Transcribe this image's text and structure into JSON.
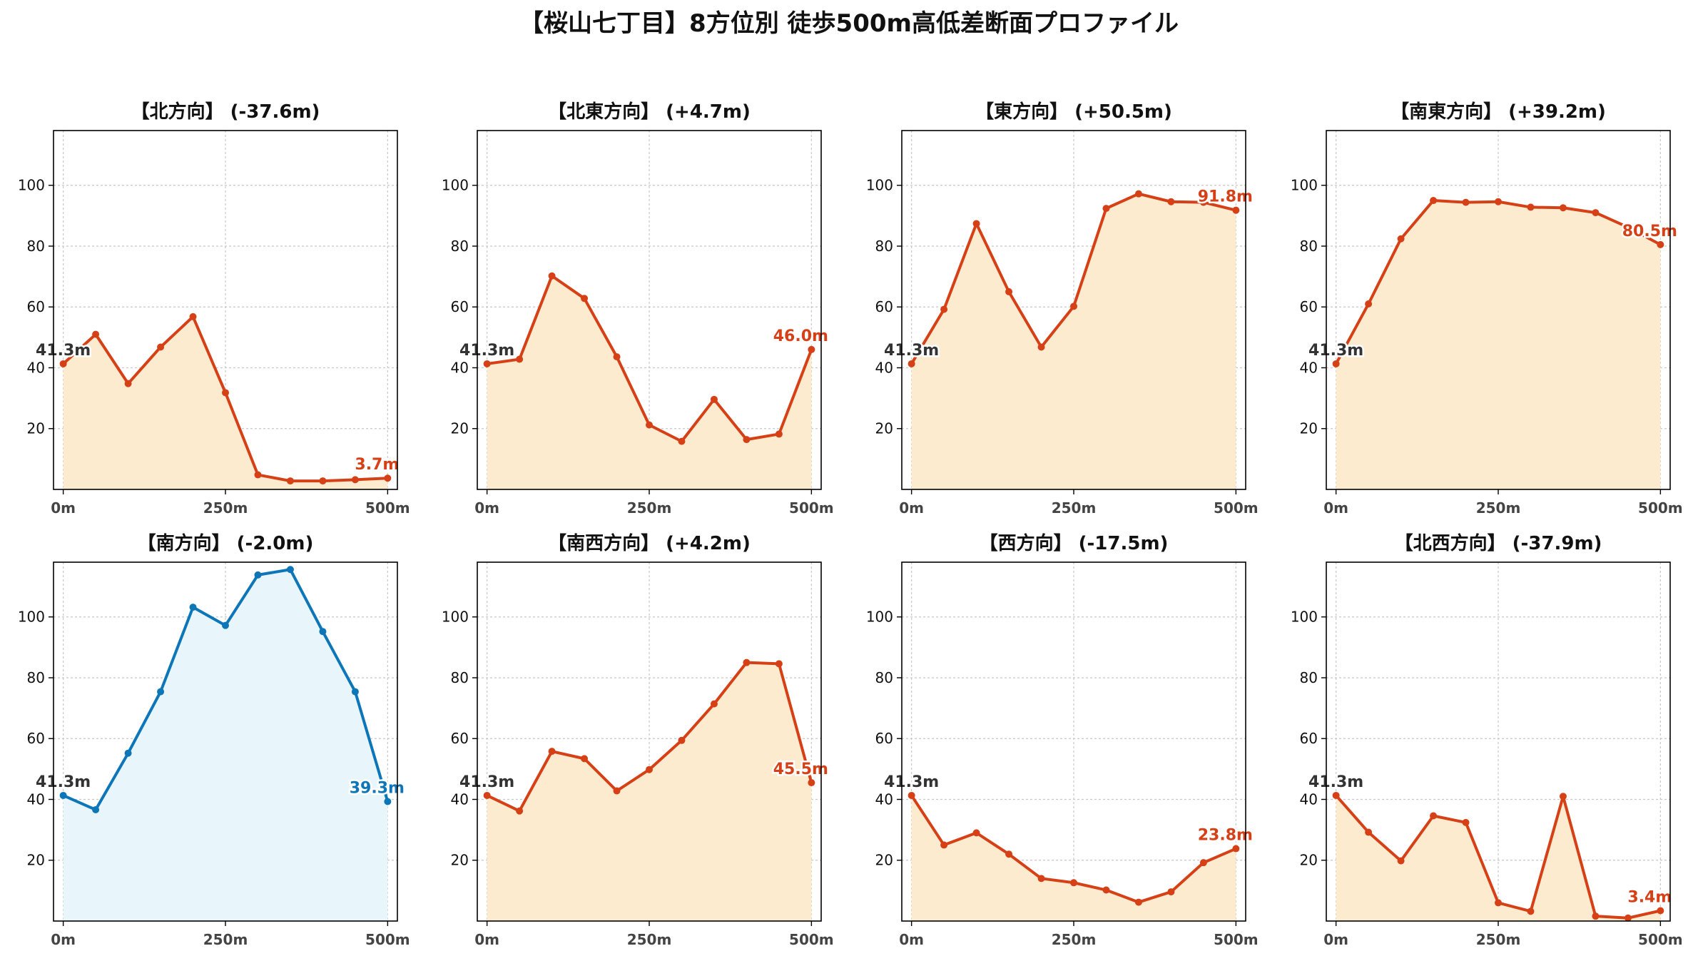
{
  "figure": {
    "suptitle": "【桜山七丁目】8方位別 徒歩500m高低差断面プロファイル"
  },
  "colors": {
    "descent": "#d64016",
    "descent_fill": "#fdebd0",
    "ascent": "#0d76b8",
    "ascent_fill": "#e8f5fb",
    "start_label": "#333333"
  },
  "chart_data": [
    {
      "type": "area",
      "title": "【北方向】 (-37.6m)",
      "x": [
        0,
        50,
        100,
        150,
        200,
        250,
        300,
        350,
        400,
        450,
        500
      ],
      "values": [
        41.3,
        51.0,
        34.8,
        46.8,
        56.8,
        31.8,
        4.8,
        2.8,
        2.8,
        3.2,
        3.7
      ],
      "start_label": "41.3m",
      "end_label": "3.7m",
      "color_key": "descent",
      "xticks": [
        0,
        250,
        500
      ],
      "xtick_labels": [
        "0m",
        "250m",
        "500m"
      ],
      "yticks": [
        20,
        40,
        60,
        80,
        100
      ],
      "xlim": [
        -15,
        515
      ],
      "ylim": [
        0,
        118
      ],
      "grid": true
    },
    {
      "type": "area",
      "title": "【北東方向】 (+4.7m)",
      "x": [
        0,
        50,
        100,
        150,
        200,
        250,
        300,
        350,
        400,
        450,
        500
      ],
      "values": [
        41.3,
        42.8,
        70.2,
        62.8,
        43.6,
        21.2,
        15.8,
        29.6,
        16.4,
        18.2,
        46.0
      ],
      "start_label": "41.3m",
      "end_label": "46.0m",
      "color_key": "descent",
      "xticks": [
        0,
        250,
        500
      ],
      "xtick_labels": [
        "0m",
        "250m",
        "500m"
      ],
      "yticks": [
        20,
        40,
        60,
        80,
        100
      ],
      "xlim": [
        -15,
        515
      ],
      "ylim": [
        0,
        118
      ],
      "grid": true
    },
    {
      "type": "area",
      "title": "【東方向】 (+50.5m)",
      "x": [
        0,
        50,
        100,
        150,
        200,
        250,
        300,
        350,
        400,
        450,
        500
      ],
      "values": [
        41.3,
        59.2,
        87.4,
        65.0,
        46.8,
        60.2,
        92.4,
        97.2,
        94.6,
        94.4,
        91.8
      ],
      "start_label": "41.3m",
      "end_label": "91.8m",
      "color_key": "descent",
      "xticks": [
        0,
        250,
        500
      ],
      "xtick_labels": [
        "0m",
        "250m",
        "500m"
      ],
      "yticks": [
        20,
        40,
        60,
        80,
        100
      ],
      "xlim": [
        -15,
        515
      ],
      "ylim": [
        0,
        118
      ],
      "grid": true
    },
    {
      "type": "area",
      "title": "【南東方向】 (+39.2m)",
      "x": [
        0,
        50,
        100,
        150,
        200,
        250,
        300,
        350,
        400,
        450,
        500
      ],
      "values": [
        41.3,
        61.0,
        82.4,
        95.0,
        94.4,
        94.6,
        92.8,
        92.6,
        91.0,
        86.2,
        80.5
      ],
      "start_label": "41.3m",
      "end_label": "80.5m",
      "color_key": "descent",
      "xticks": [
        0,
        250,
        500
      ],
      "xtick_labels": [
        "0m",
        "250m",
        "500m"
      ],
      "yticks": [
        20,
        40,
        60,
        80,
        100
      ],
      "xlim": [
        -15,
        515
      ],
      "ylim": [
        0,
        118
      ],
      "grid": true
    },
    {
      "type": "area",
      "title": "【南方向】 (-2.0m)",
      "x": [
        0,
        50,
        100,
        150,
        200,
        250,
        300,
        350,
        400,
        450,
        500
      ],
      "values": [
        41.3,
        36.6,
        55.2,
        75.4,
        103.2,
        97.2,
        113.8,
        115.6,
        95.2,
        75.4,
        39.3
      ],
      "start_label": "41.3m",
      "end_label": "39.3m",
      "color_key": "ascent",
      "xticks": [
        0,
        250,
        500
      ],
      "xtick_labels": [
        "0m",
        "250m",
        "500m"
      ],
      "yticks": [
        20,
        40,
        60,
        80,
        100
      ],
      "xlim": [
        -15,
        515
      ],
      "ylim": [
        0,
        118
      ],
      "grid": true
    },
    {
      "type": "area",
      "title": "【南西方向】 (+4.2m)",
      "x": [
        0,
        50,
        100,
        150,
        200,
        250,
        300,
        350,
        400,
        450,
        500
      ],
      "values": [
        41.3,
        36.2,
        55.8,
        53.4,
        42.8,
        49.8,
        59.4,
        71.4,
        85.0,
        84.6,
        45.5
      ],
      "start_label": "41.3m",
      "end_label": "45.5m",
      "color_key": "descent",
      "xticks": [
        0,
        250,
        500
      ],
      "xtick_labels": [
        "0m",
        "250m",
        "500m"
      ],
      "yticks": [
        20,
        40,
        60,
        80,
        100
      ],
      "xlim": [
        -15,
        515
      ],
      "ylim": [
        0,
        118
      ],
      "grid": true
    },
    {
      "type": "area",
      "title": "【西方向】 (-17.5m)",
      "x": [
        0,
        50,
        100,
        150,
        200,
        250,
        300,
        350,
        400,
        450,
        500
      ],
      "values": [
        41.3,
        25.0,
        29.0,
        22.0,
        14.0,
        12.6,
        10.2,
        6.2,
        9.6,
        19.2,
        23.8
      ],
      "start_label": "41.3m",
      "end_label": "23.8m",
      "color_key": "descent",
      "xticks": [
        0,
        250,
        500
      ],
      "xtick_labels": [
        "0m",
        "250m",
        "500m"
      ],
      "yticks": [
        20,
        40,
        60,
        80,
        100
      ],
      "xlim": [
        -15,
        515
      ],
      "ylim": [
        0,
        118
      ],
      "grid": true
    },
    {
      "type": "area",
      "title": "【北西方向】 (-37.9m)",
      "x": [
        0,
        50,
        100,
        150,
        200,
        250,
        300,
        350,
        400,
        450,
        500
      ],
      "values": [
        41.3,
        29.2,
        19.8,
        34.6,
        32.4,
        6.0,
        3.2,
        41.0,
        1.6,
        1.0,
        3.4
      ],
      "start_label": "41.3m",
      "end_label": "3.4m",
      "color_key": "descent",
      "xticks": [
        0,
        250,
        500
      ],
      "xtick_labels": [
        "0m",
        "250m",
        "500m"
      ],
      "yticks": [
        20,
        40,
        60,
        80,
        100
      ],
      "xlim": [
        -15,
        515
      ],
      "ylim": [
        0,
        118
      ],
      "grid": true
    }
  ]
}
